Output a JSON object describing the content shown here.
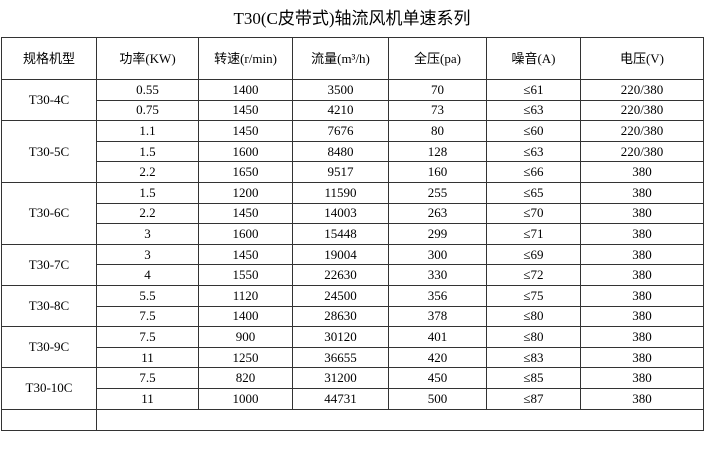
{
  "title": "T30(C皮带式)轴流风机单速系列",
  "table": {
    "headers": [
      "规格机型",
      "功率(KW)",
      "转速(r/min)",
      "流量(m³/h)",
      "全压(pa)",
      "噪音(A)",
      "电压(V)"
    ],
    "groups": [
      {
        "model": "T30-4C",
        "rows": [
          [
            "0.55",
            "1400",
            "3500",
            "70",
            "≤61",
            "220/380"
          ],
          [
            "0.75",
            "1450",
            "4210",
            "73",
            "≤63",
            "220/380"
          ]
        ]
      },
      {
        "model": "T30-5C",
        "rows": [
          [
            "1.1",
            "1450",
            "7676",
            "80",
            "≤60",
            "220/380"
          ],
          [
            "1.5",
            "1600",
            "8480",
            "128",
            "≤63",
            "220/380"
          ],
          [
            "2.2",
            "1650",
            "9517",
            "160",
            "≤66",
            "380"
          ]
        ]
      },
      {
        "model": "T30-6C",
        "rows": [
          [
            "1.5",
            "1200",
            "11590",
            "255",
            "≤65",
            "380"
          ],
          [
            "2.2",
            "1450",
            "14003",
            "263",
            "≤70",
            "380"
          ],
          [
            "3",
            "1600",
            "15448",
            "299",
            "≤71",
            "380"
          ]
        ]
      },
      {
        "model": "T30-7C",
        "rows": [
          [
            "3",
            "1450",
            "19004",
            "300",
            "≤69",
            "380"
          ],
          [
            "4",
            "1550",
            "22630",
            "330",
            "≤72",
            "380"
          ]
        ]
      },
      {
        "model": "T30-8C",
        "rows": [
          [
            "5.5",
            "1120",
            "24500",
            "356",
            "≤75",
            "380"
          ],
          [
            "7.5",
            "1400",
            "28630",
            "378",
            "≤80",
            "380"
          ]
        ]
      },
      {
        "model": "T30-9C",
        "rows": [
          [
            "7.5",
            "900",
            "30120",
            "401",
            "≤80",
            "380"
          ],
          [
            "11",
            "1250",
            "36655",
            "420",
            "≤83",
            "380"
          ]
        ]
      },
      {
        "model": "T30-10C",
        "rows": [
          [
            "7.5",
            "820",
            "31200",
            "450",
            "≤85",
            "380"
          ],
          [
            "11",
            "1000",
            "44731",
            "500",
            "≤87",
            "380"
          ]
        ]
      }
    ]
  }
}
